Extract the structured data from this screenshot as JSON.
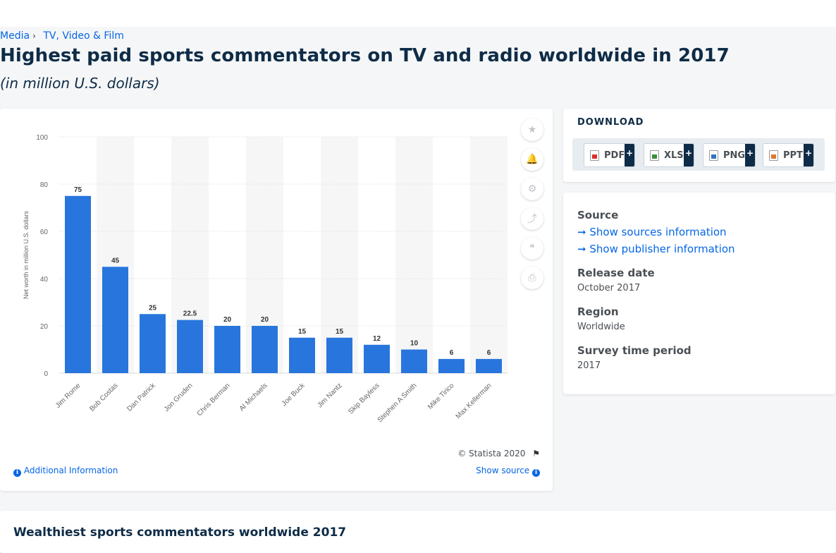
{
  "breadcrumb": {
    "items": [
      "Media",
      "TV, Video & Film"
    ]
  },
  "page": {
    "title": "Highest paid sports commentators on TV and radio worldwide in 2017",
    "subtitle": "(in million U.S. dollars)"
  },
  "chart_tools": {
    "icons": [
      "star-icon",
      "bell-icon",
      "gear-icon",
      "share-icon",
      "quote-icon",
      "print-icon"
    ],
    "glyphs": [
      "★",
      "🔔",
      "⚙",
      "⤴",
      "❝",
      "⎙"
    ]
  },
  "chart_footer": {
    "copyright": "© Statista 2020",
    "flag_glyph": "⚑",
    "additional_info": "Additional Information",
    "show_source": "Show source"
  },
  "download": {
    "title": "DOWNLOAD",
    "formats": [
      {
        "label": "PDF",
        "color": "#d9302b"
      },
      {
        "label": "XLS",
        "color": "#3a8f3a"
      },
      {
        "label": "PNG",
        "color": "#2f74c0"
      },
      {
        "label": "PPT",
        "color": "#e0772a"
      }
    ],
    "plus": "+"
  },
  "info": {
    "source_heading": "Source",
    "show_sources": "Show sources information",
    "show_publisher": "Show publisher information",
    "release_heading": "Release date",
    "release_value": "October 2017",
    "region_heading": "Region",
    "region_value": "Worldwide",
    "period_heading": "Survey time period",
    "period_value": "2017"
  },
  "related": {
    "title": "Wealthiest sports commentators worldwide 2017"
  },
  "colors": {
    "bar": "#2876dd",
    "accent": "#0666e5",
    "heading": "#0e2c47"
  },
  "chart_data": {
    "type": "bar",
    "categories": [
      "Jim Rome",
      "Bob Costas",
      "Dan Patrick",
      "Jon Gruden",
      "Chris Berman",
      "Al Michaels",
      "Joe Buck",
      "Jim Nantz",
      "Skip Bayless",
      "Stephen A Smith",
      "Mike Tirico",
      "Max Kellerman"
    ],
    "values": [
      75,
      45,
      25,
      22.5,
      20,
      20,
      15,
      15,
      12,
      10,
      6,
      6
    ],
    "value_labels": [
      "75",
      "45",
      "25",
      "22.5",
      "20",
      "20",
      "15",
      "15",
      "12",
      "10",
      "6",
      "6"
    ],
    "ylabel": "Net worth in million U.S. dollars",
    "ylim": [
      0,
      100
    ],
    "yticks": [
      0,
      20,
      40,
      60,
      80,
      100
    ],
    "grid": true
  }
}
